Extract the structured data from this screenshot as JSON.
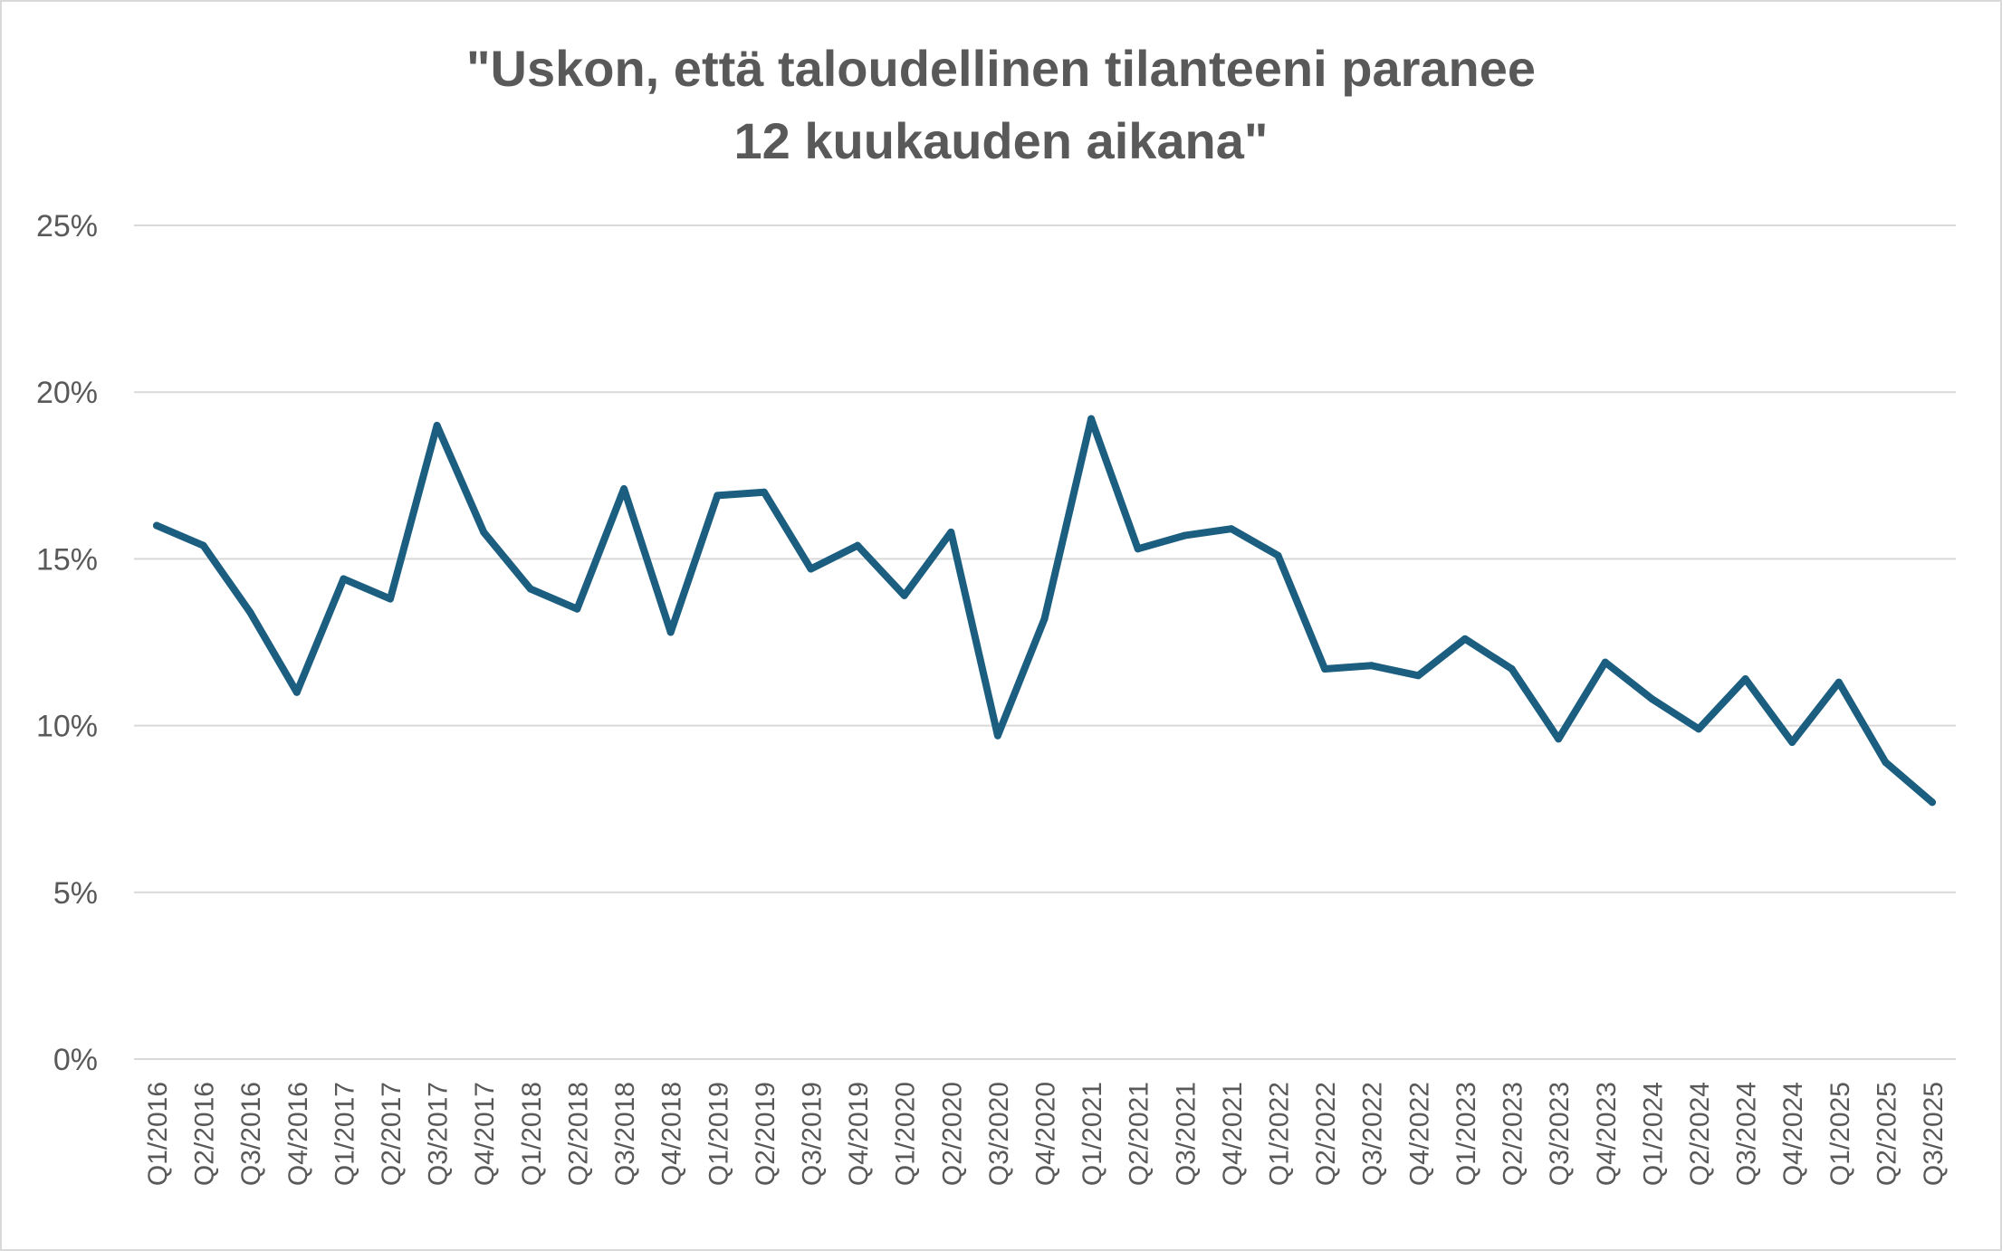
{
  "chart_data": {
    "type": "line",
    "title_lines": [
      "\"Uskon, että taloudellinen tilanteeni paranee",
      "12 kuukauden aikana\""
    ],
    "xlabel": "",
    "ylabel": "",
    "ylim": [
      0,
      25
    ],
    "y_ticks": [
      {
        "value": 0,
        "label": "0%"
      },
      {
        "value": 5,
        "label": "5%"
      },
      {
        "value": 10,
        "label": "10%"
      },
      {
        "value": 15,
        "label": "15%"
      },
      {
        "value": 20,
        "label": "20%"
      },
      {
        "value": 25,
        "label": "25%"
      }
    ],
    "grid": true,
    "legend": "none",
    "line_color": "#1b5e80",
    "categories": [
      "Q1/2016",
      "Q2/2016",
      "Q3/2016",
      "Q4/2016",
      "Q1/2017",
      "Q2/2017",
      "Q3/2017",
      "Q4/2017",
      "Q1/2018",
      "Q2/2018",
      "Q3/2018",
      "Q4/2018",
      "Q1/2019",
      "Q2/2019",
      "Q3/2019",
      "Q4/2019",
      "Q1/2020",
      "Q2/2020",
      "Q3/2020",
      "Q4/2020",
      "Q1/2021",
      "Q2/2021",
      "Q3/2021",
      "Q4/2021",
      "Q1/2022",
      "Q2/2022",
      "Q3/2022",
      "Q4/2022",
      "Q1/2023",
      "Q2/2023",
      "Q3/2023",
      "Q4/2023",
      "Q1/2024",
      "Q2/2024",
      "Q3/2024",
      "Q4/2024",
      "Q1/2025",
      "Q2/2025",
      "Q3/2025"
    ],
    "series": [
      {
        "values": [
          16.0,
          15.4,
          13.4,
          11.0,
          14.4,
          13.8,
          19.0,
          15.8,
          14.1,
          13.5,
          17.1,
          12.8,
          16.9,
          17.0,
          14.7,
          15.4,
          13.9,
          15.8,
          9.7,
          13.2,
          19.2,
          15.3,
          15.7,
          15.9,
          15.1,
          11.7,
          11.8,
          11.5,
          12.6,
          11.7,
          9.6,
          11.9,
          10.8,
          9.9,
          11.4,
          9.5,
          11.3,
          8.9,
          7.7
        ]
      }
    ]
  }
}
